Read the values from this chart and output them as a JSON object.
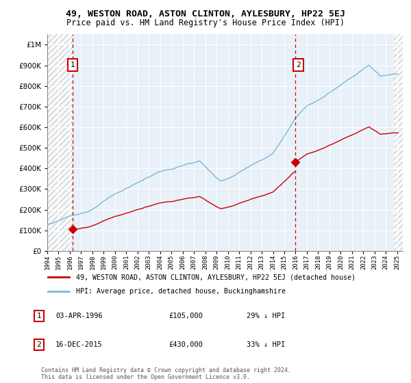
{
  "title": "49, WESTON ROAD, ASTON CLINTON, AYLESBURY, HP22 5EJ",
  "subtitle": "Price paid vs. HM Land Registry's House Price Index (HPI)",
  "legend_line1": "49, WESTON ROAD, ASTON CLINTON, AYLESBURY, HP22 5EJ (detached house)",
  "legend_line2": "HPI: Average price, detached house, Buckinghamshire",
  "annotation1": {
    "label": "1",
    "date": "03-APR-1996",
    "price": 105000,
    "note": "29% ↓ HPI"
  },
  "annotation2": {
    "label": "2",
    "date": "16-DEC-2015",
    "price": 430000,
    "note": "33% ↓ HPI"
  },
  "sale1_year": 1996.25,
  "sale2_year": 2015.96,
  "hpi_color": "#7ab8d9",
  "price_color": "#cc0000",
  "vline_color": "#cc0000",
  "background_color": "#e8f0f8",
  "ylim": [
    0,
    1050000
  ],
  "xlim_start": 1994.0,
  "xlim_end": 2025.5,
  "footer1": "Contains HM Land Registry data © Crown copyright and database right 2024.",
  "footer2": "This data is licensed under the Open Government Licence v3.0."
}
